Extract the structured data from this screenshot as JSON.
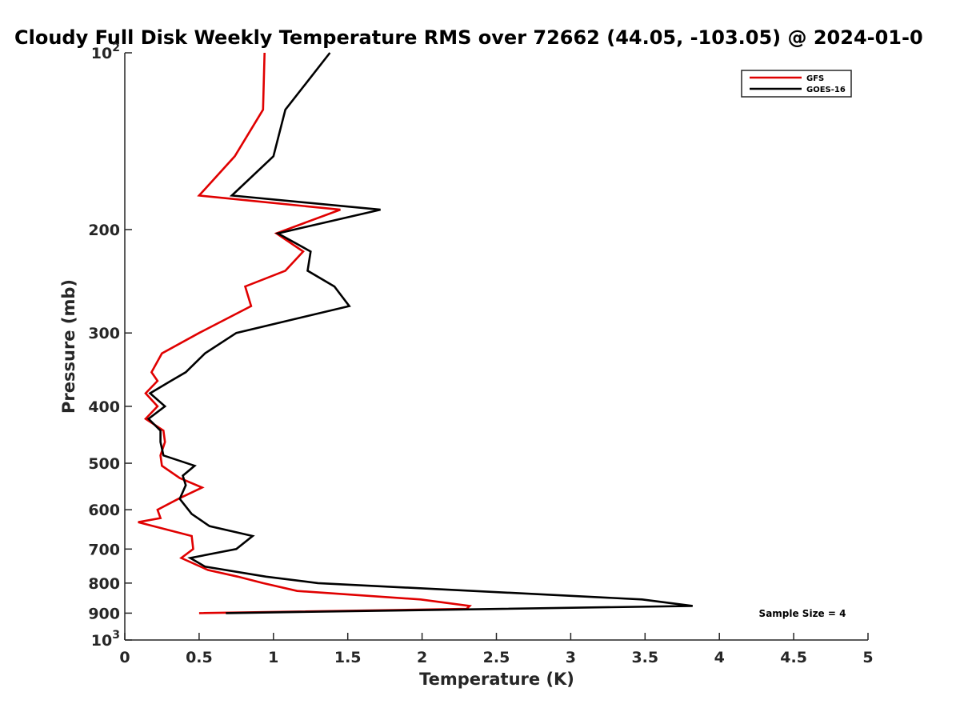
{
  "chart_data": {
    "type": "line",
    "title": "Cloudy Full Disk Weekly Temperature RMS over 72662 (44.05, -103.05) @ 2024-01-0",
    "xlabel": "Temperature (K)",
    "ylabel": "Pressure (mb)",
    "xlim": [
      0,
      5
    ],
    "ylim": [
      100,
      1000
    ],
    "y_scale": "log",
    "y_reversed": true,
    "grid": false,
    "legend_position": "top-right",
    "x_ticks": [
      "0",
      "0.5",
      "1",
      "1.5",
      "2",
      "2.5",
      "3",
      "3.5",
      "4",
      "4.5",
      "5"
    ],
    "y_ticks": [
      {
        "value": 100,
        "base": "10",
        "exp": "2"
      },
      {
        "value": 200,
        "label": "200"
      },
      {
        "value": 300,
        "label": "300"
      },
      {
        "value": 400,
        "label": "400"
      },
      {
        "value": 500,
        "label": "500"
      },
      {
        "value": 600,
        "label": "600"
      },
      {
        "value": 700,
        "label": "700"
      },
      {
        "value": 800,
        "label": "800"
      },
      {
        "value": 900,
        "label": "900"
      },
      {
        "value": 1000,
        "base": "10",
        "exp": "3"
      }
    ],
    "annotation": "Sample Size = 4",
    "series": [
      {
        "name": "GFS",
        "color": "#e00000",
        "points": [
          [
            0.94,
            100
          ],
          [
            0.93,
            125
          ],
          [
            0.74,
            150
          ],
          [
            0.5,
            175
          ],
          [
            1.45,
            185
          ],
          [
            1.02,
            203
          ],
          [
            1.2,
            218
          ],
          [
            1.08,
            235
          ],
          [
            0.81,
            250
          ],
          [
            0.85,
            270
          ],
          [
            0.5,
            300
          ],
          [
            0.25,
            325
          ],
          [
            0.18,
            350
          ],
          [
            0.22,
            362
          ],
          [
            0.14,
            380
          ],
          [
            0.22,
            400
          ],
          [
            0.14,
            420
          ],
          [
            0.26,
            440
          ],
          [
            0.27,
            460
          ],
          [
            0.24,
            485
          ],
          [
            0.25,
            505
          ],
          [
            0.37,
            530
          ],
          [
            0.52,
            550
          ],
          [
            0.36,
            575
          ],
          [
            0.22,
            600
          ],
          [
            0.24,
            620
          ],
          [
            0.09,
            630
          ],
          [
            0.45,
            665
          ],
          [
            0.46,
            700
          ],
          [
            0.38,
            725
          ],
          [
            0.56,
            760
          ],
          [
            0.76,
            780
          ],
          [
            0.93,
            800
          ],
          [
            1.16,
            825
          ],
          [
            1.99,
            853
          ],
          [
            2.32,
            875
          ],
          [
            2.3,
            885
          ],
          [
            0.5,
            900
          ]
        ]
      },
      {
        "name": "GOES-16",
        "color": "#000000",
        "points": [
          [
            1.38,
            100
          ],
          [
            1.08,
            125
          ],
          [
            1.0,
            150
          ],
          [
            0.72,
            175
          ],
          [
            1.72,
            185
          ],
          [
            1.03,
            203
          ],
          [
            1.25,
            218
          ],
          [
            1.23,
            235
          ],
          [
            1.41,
            250
          ],
          [
            1.51,
            270
          ],
          [
            0.75,
            300
          ],
          [
            0.54,
            325
          ],
          [
            0.41,
            350
          ],
          [
            0.31,
            362
          ],
          [
            0.17,
            380
          ],
          [
            0.27,
            400
          ],
          [
            0.16,
            420
          ],
          [
            0.24,
            440
          ],
          [
            0.24,
            460
          ],
          [
            0.26,
            485
          ],
          [
            0.47,
            505
          ],
          [
            0.39,
            525
          ],
          [
            0.41,
            545
          ],
          [
            0.37,
            575
          ],
          [
            0.45,
            610
          ],
          [
            0.57,
            640
          ],
          [
            0.86,
            665
          ],
          [
            0.75,
            700
          ],
          [
            0.44,
            725
          ],
          [
            0.54,
            750
          ],
          [
            0.95,
            780
          ],
          [
            1.3,
            800
          ],
          [
            3.48,
            853
          ],
          [
            3.82,
            875
          ],
          [
            0.68,
            900
          ]
        ]
      }
    ]
  }
}
